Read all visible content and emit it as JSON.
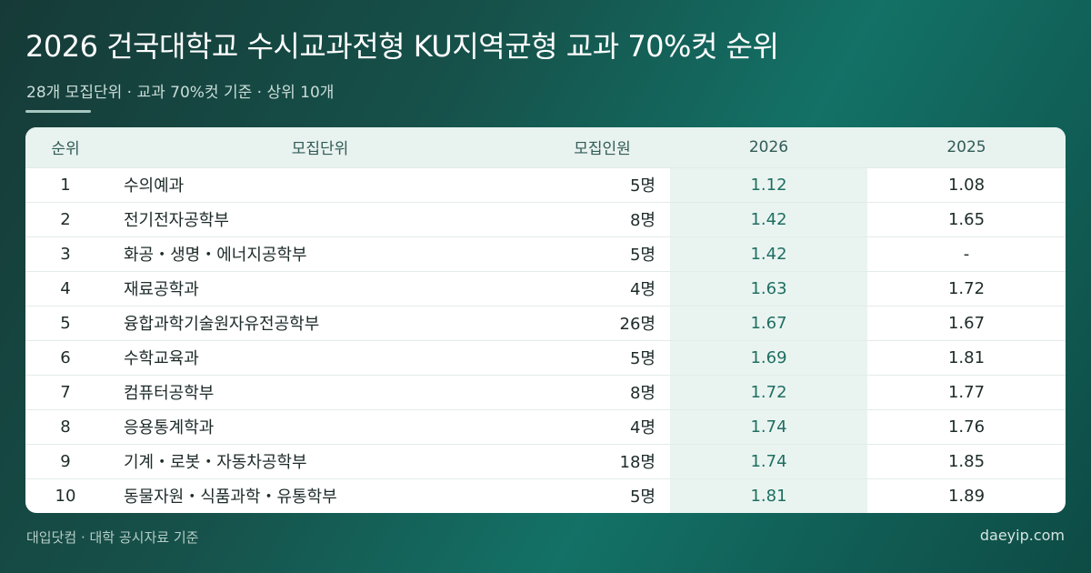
{
  "header": {
    "title": "2026 건국대학교 수시교과전형 KU지역균형 교과 70%컷 순위",
    "subtitle": "28개 모집단위 · 교과 70%컷 기준 · 상위 10개"
  },
  "table": {
    "columns": [
      "순위",
      "모집단위",
      "모집인원",
      "2026",
      "2025"
    ],
    "rows": [
      {
        "rank": "1",
        "name": "수의예과",
        "quota": "5명",
        "y2026": "1.12",
        "y2025": "1.08"
      },
      {
        "rank": "2",
        "name": "전기전자공학부",
        "quota": "8명",
        "y2026": "1.42",
        "y2025": "1.65"
      },
      {
        "rank": "3",
        "name": "화공・생명・에너지공학부",
        "quota": "5명",
        "y2026": "1.42",
        "y2025": "-"
      },
      {
        "rank": "4",
        "name": "재료공학과",
        "quota": "4명",
        "y2026": "1.63",
        "y2025": "1.72"
      },
      {
        "rank": "5",
        "name": "융합과학기술원자유전공학부",
        "quota": "26명",
        "y2026": "1.67",
        "y2025": "1.67"
      },
      {
        "rank": "6",
        "name": "수학교육과",
        "quota": "5명",
        "y2026": "1.69",
        "y2025": "1.81"
      },
      {
        "rank": "7",
        "name": "컴퓨터공학부",
        "quota": "8명",
        "y2026": "1.72",
        "y2025": "1.77"
      },
      {
        "rank": "8",
        "name": "응용통계학과",
        "quota": "4명",
        "y2026": "1.74",
        "y2025": "1.76"
      },
      {
        "rank": "9",
        "name": "기계・로봇・자동차공학부",
        "quota": "18명",
        "y2026": "1.74",
        "y2025": "1.85"
      },
      {
        "rank": "10",
        "name": "동물자원・식품과학・유통학부",
        "quota": "5명",
        "y2026": "1.81",
        "y2025": "1.89"
      }
    ]
  },
  "footer": {
    "source": "대입닷컴 · 대학 공시자료 기준",
    "site": "daeyip.com"
  },
  "colors": {
    "background": "#137166",
    "accent_column_bg": "#e9f4f1",
    "accent_column_text": "#1f6e61",
    "header_row_bg": "#e8f2ef"
  }
}
